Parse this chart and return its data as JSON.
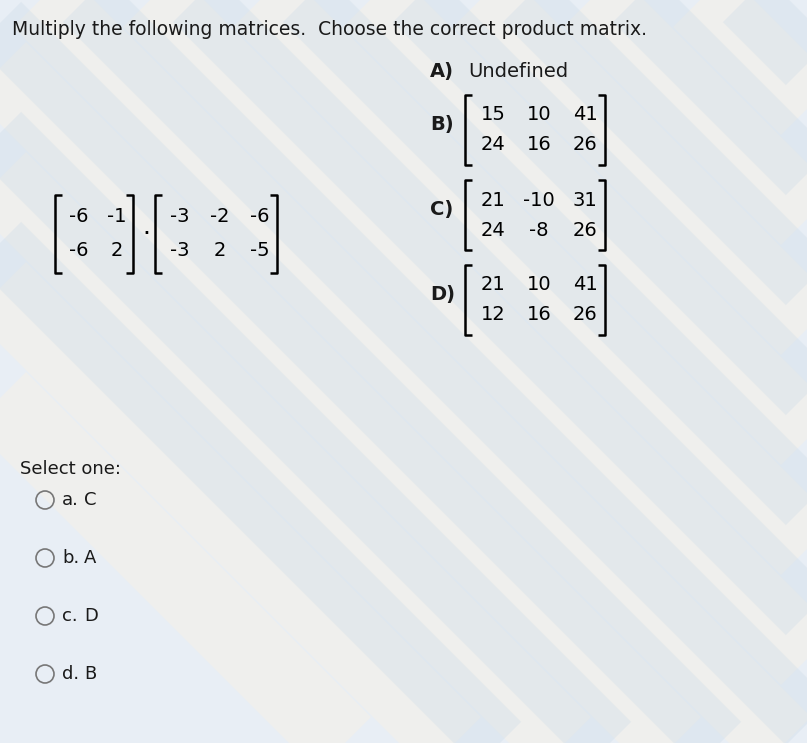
{
  "title": "Multiply the following matrices.  Choose the correct product matrix.",
  "bg_color": "#e8eef5",
  "stripe_color_light": "#dce6f0",
  "stripe_color_cream": "#f0ece0",
  "matrix1": [
    [
      -6,
      -1
    ],
    [
      -6,
      2
    ]
  ],
  "matrix2": [
    [
      -3,
      -2,
      -6
    ],
    [
      -3,
      2,
      -5
    ]
  ],
  "option_A_label": "A)",
  "option_A_text": "Undefined",
  "option_B_label": "B)",
  "option_B_matrix": [
    [
      15,
      10,
      41
    ],
    [
      24,
      16,
      26
    ]
  ],
  "option_C_label": "C)",
  "option_C_matrix": [
    [
      21,
      -10,
      31
    ],
    [
      24,
      -8,
      26
    ]
  ],
  "option_D_label": "D)",
  "option_D_matrix": [
    [
      21,
      10,
      41
    ],
    [
      12,
      16,
      26
    ]
  ],
  "select_text": "Select one:",
  "choices": [
    "a.",
    "b.",
    "c.",
    "d."
  ],
  "choice_letters": [
    "C",
    "A",
    "D",
    "B"
  ],
  "text_color": "#1a1a1a",
  "font_size_title": 13.5,
  "font_size_body": 13,
  "font_size_matrix": 13
}
